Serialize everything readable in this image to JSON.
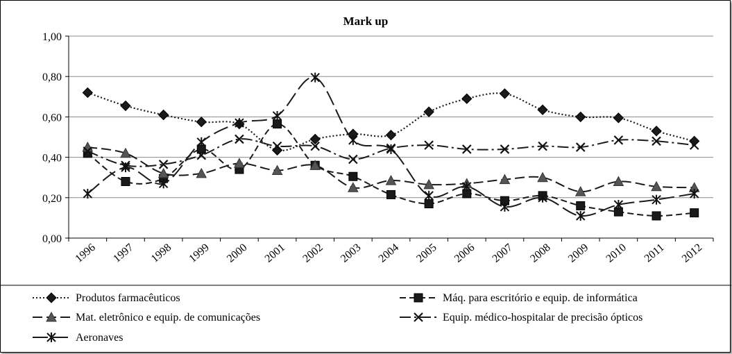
{
  "chart_data": {
    "type": "line",
    "title": "Mark up",
    "xlabel": "",
    "ylabel": "",
    "x": [
      "1996",
      "1997",
      "1998",
      "1999",
      "2000",
      "2001",
      "2002",
      "2003",
      "2004",
      "2005",
      "2006",
      "2007",
      "2008",
      "2009",
      "2010",
      "2011",
      "2012"
    ],
    "ylim": [
      0,
      1
    ],
    "yticks": [
      "0,00",
      "0,20",
      "0,40",
      "0,60",
      "0,80",
      "1,00"
    ],
    "grid": true,
    "legend_position": "bottom",
    "series": [
      {
        "name": "Produtos farmacêuticos",
        "style": "dotted",
        "marker": "diamond",
        "values": [
          0.72,
          0.655,
          0.61,
          0.575,
          0.565,
          0.435,
          0.49,
          0.515,
          0.51,
          0.625,
          0.69,
          0.715,
          0.635,
          0.6,
          0.595,
          0.53,
          0.48
        ]
      },
      {
        "name": "Máq. para escritório e equip. de informática",
        "style": "short-dash",
        "marker": "square",
        "values": [
          0.42,
          0.28,
          0.295,
          0.44,
          0.34,
          0.565,
          0.36,
          0.305,
          0.215,
          0.17,
          0.22,
          0.185,
          0.21,
          0.16,
          0.13,
          0.11,
          0.125
        ]
      },
      {
        "name": "Mat. eletrônico e equip. de comunicações",
        "style": "long-dash",
        "marker": "triangle",
        "values": [
          0.45,
          0.42,
          0.32,
          0.32,
          0.37,
          0.335,
          0.36,
          0.25,
          0.285,
          0.265,
          0.27,
          0.29,
          0.3,
          0.23,
          0.28,
          0.255,
          0.25
        ]
      },
      {
        "name": "Equip. médico-hospitalar de precisão ópticos",
        "style": "dash-dot",
        "marker": "x",
        "values": [
          0.43,
          0.36,
          0.365,
          0.41,
          0.49,
          0.455,
          0.455,
          0.39,
          0.445,
          0.46,
          0.44,
          0.44,
          0.455,
          0.45,
          0.485,
          0.48,
          0.46
        ]
      },
      {
        "name": "Aeronaves",
        "style": "long-dash-smooth",
        "marker": "star",
        "values": [
          0.22,
          0.35,
          0.27,
          0.475,
          0.57,
          0.605,
          0.795,
          0.485,
          0.44,
          0.21,
          0.255,
          0.155,
          0.2,
          0.11,
          0.165,
          0.19,
          0.22
        ]
      }
    ]
  }
}
